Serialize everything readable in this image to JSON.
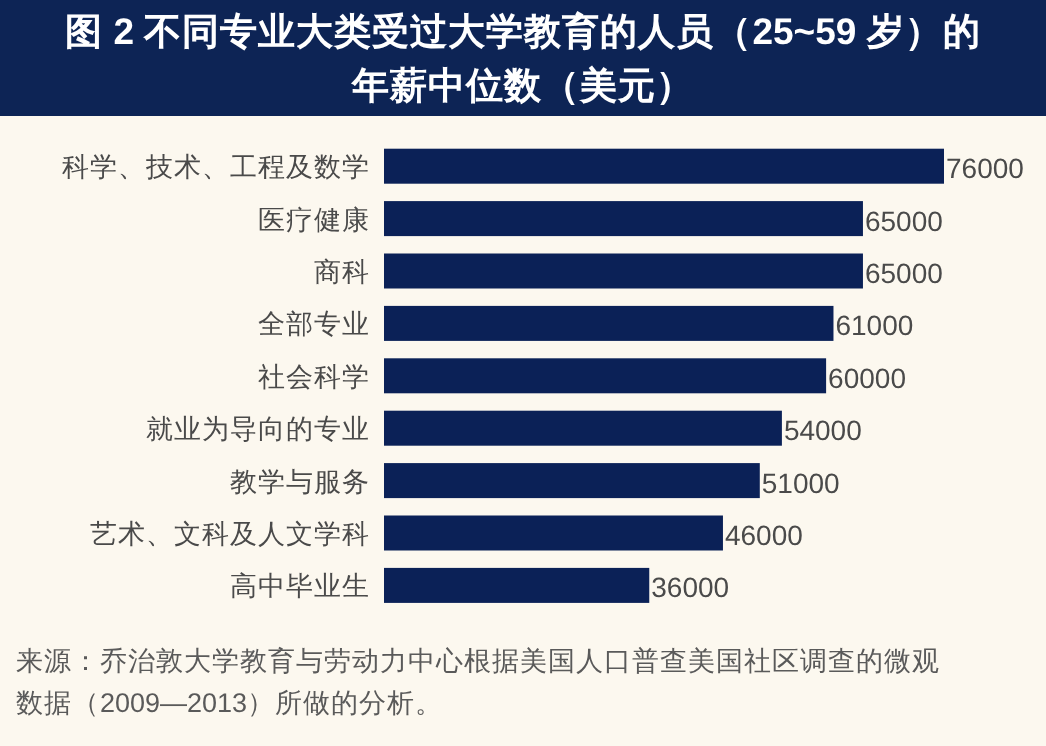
{
  "chart_data": {
    "type": "bar",
    "orientation": "horizontal",
    "title": "图 2 不同专业大类受过大学教育的人员（25~59 岁）的年薪中位数（美元）",
    "categories": [
      "科学、技术、工程及数学",
      "医疗健康",
      "商科",
      "全部专业",
      "社会科学",
      "就业为导向的专业",
      "教学与服务",
      "艺术、文科及人文学科",
      "高中毕业生"
    ],
    "values": [
      76000,
      65000,
      65000,
      61000,
      60000,
      54000,
      51000,
      46000,
      36000
    ],
    "color": "#0b2157",
    "data_labels": true,
    "annotations": [
      "来源：乔治敦大学教育与劳动力中心根据美国人口普查美国社区调查的微观数据（2009—2013）所做的分析。"
    ]
  }
}
